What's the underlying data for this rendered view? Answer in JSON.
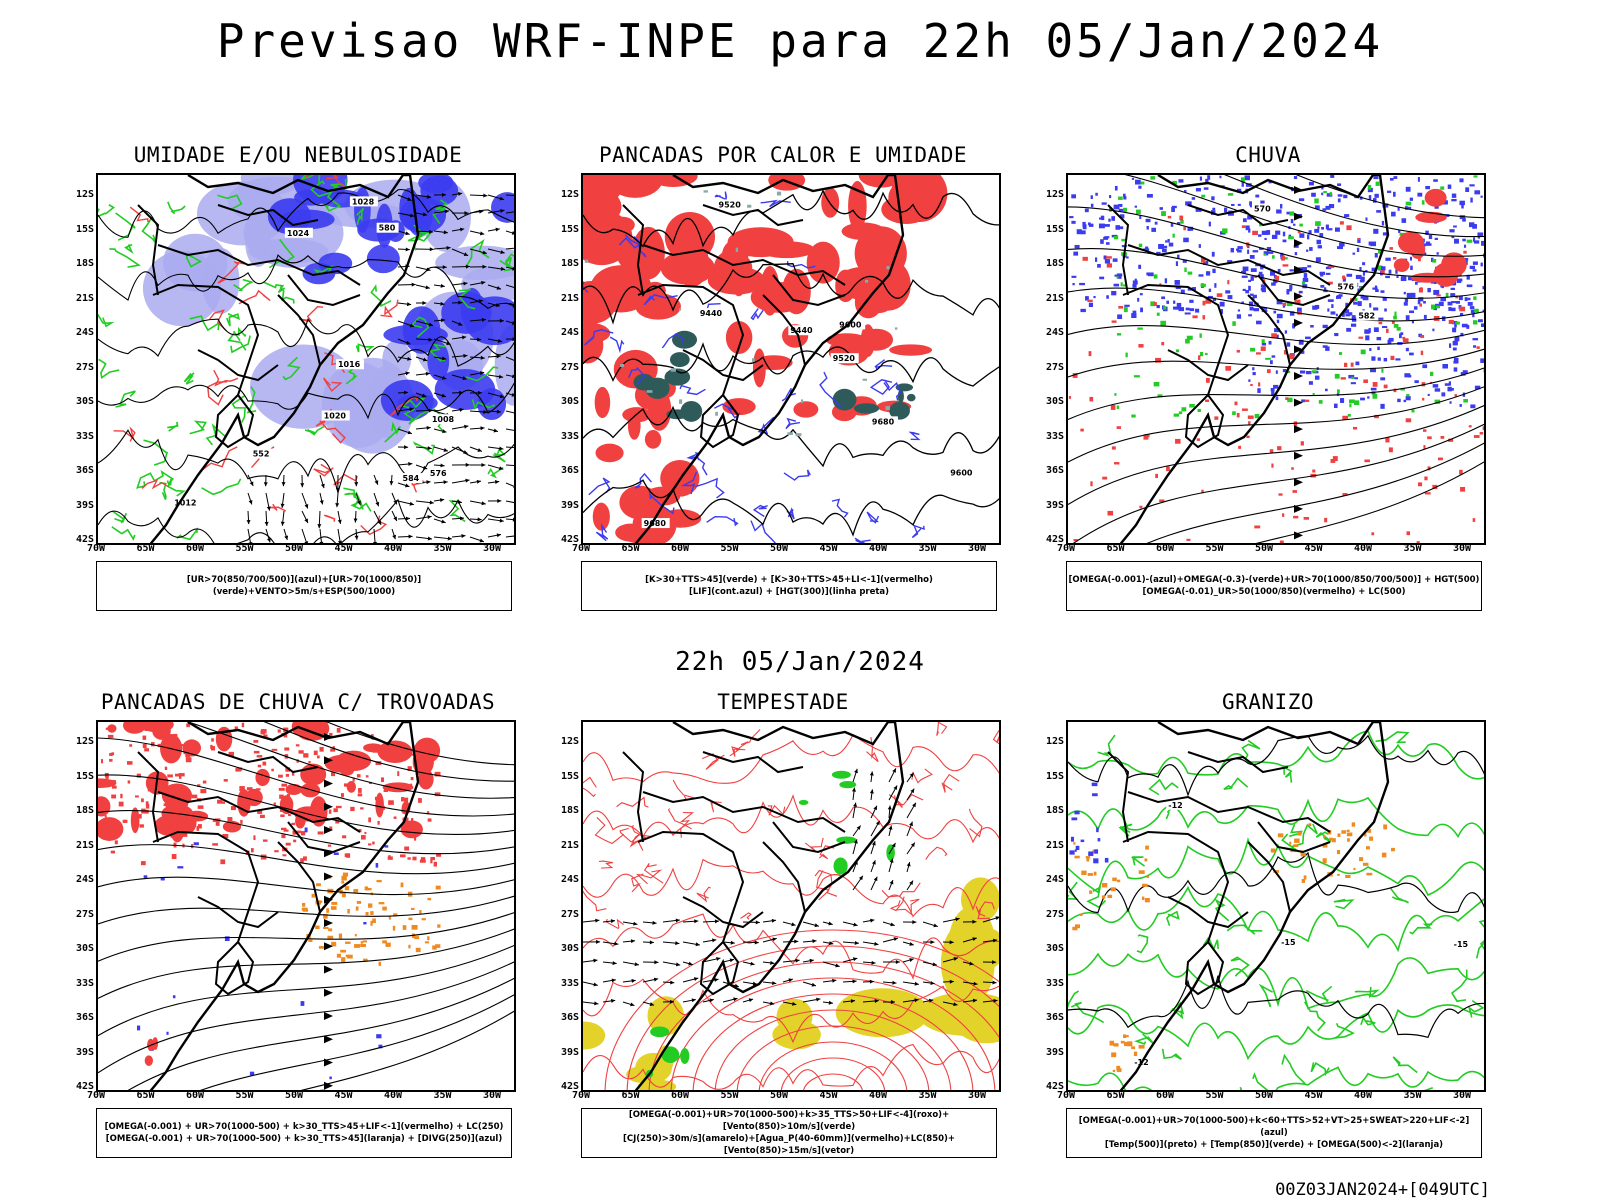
{
  "title": "Previsao WRF-INPE  para 22h 05/Jan/2024",
  "mid_title": "22h 05/Jan/2024",
  "footer": "00Z03JAN2024+[049UTC]",
  "axes": {
    "lat_labels": [
      "12S",
      "15S",
      "18S",
      "21S",
      "24S",
      "27S",
      "30S",
      "33S",
      "36S",
      "39S",
      "42S"
    ],
    "lon_labels": [
      "70W",
      "65W",
      "60W",
      "55W",
      "50W",
      "45W",
      "40W",
      "35W",
      "30W"
    ]
  },
  "chart_data": [
    {
      "type": "map",
      "id": "p1",
      "title": "UMIDADE E/OU NEBULOSIDADE",
      "legend_lines": [
        "[UR>70(850/700/500)](azul)+[UR>70(1000/850)](verde)+VENTO>5m/s+ESP(500/1000)"
      ],
      "contour_labels": [
        "1012",
        "1008",
        "1016",
        "1020",
        "1024",
        "1028",
        "576",
        "580",
        "584",
        "552"
      ]
    },
    {
      "type": "map",
      "id": "p2",
      "title": "PANCADAS POR CALOR E UMIDADE",
      "legend_lines": [
        "[K>30+TTS>45](verde) + [K>30+TTS>45+LI<-1](vermelho)",
        "[LIF](cont.azul) + [HGT(300)](linha preta)"
      ],
      "contour_labels": [
        "9680",
        "9600",
        "9520",
        "9440"
      ]
    },
    {
      "type": "map",
      "id": "p3",
      "title": "CHUVA",
      "legend_lines": [
        "[OMEGA(-0.001)-(azul)+OMEGA(-0.3)-(verde)+UR>70(1000/850/700/500)] + HGT(500)",
        "[OMEGA(-0.01)_UR>50(1000/850)(vermelho) + LC(500)"
      ],
      "contour_labels": [
        "582",
        "576",
        "570"
      ]
    },
    {
      "type": "map",
      "id": "p4",
      "title": "PANCADAS DE CHUVA C/ TROVOADAS",
      "legend_lines": [
        "[OMEGA(-0.001) + UR>70(1000-500) + k>30_TTS>45+LIF<-1](vermelho) + LC(250)",
        "[OMEGA(-0.001) + UR>70(1000-500) + k>30_TTS>45](laranja) + [DIVG(250)](azul)"
      ],
      "contour_labels": []
    },
    {
      "type": "map",
      "id": "p5",
      "title": "TEMPESTADE",
      "legend_lines": [
        "[OMEGA(-0.001)+UR>70(1000-500)+k>35_TTS>50+LIF<-4](roxo)+[Vento(850)>10m/s](verde)",
        "[CJ(250)>30m/s](amarelo)+[Agua_P(40-60mm)](vermelho)+LC(850)+[Vento(850)>15m/s](vetor)"
      ],
      "contour_labels": []
    },
    {
      "type": "map",
      "id": "p6",
      "title": "GRANIZO",
      "legend_lines": [
        "[OMEGA(-0.001)+UR>70(1000-500)+k<60+TTS>52+VT>25+SWEAT>220+LIF<-2](azul)",
        "[Temp(500)](preto) + [Temp(850)](verde) + [OMEGA(500)<-2](laranja)"
      ],
      "contour_labels": [
        "-12",
        "-15"
      ]
    }
  ],
  "colors": {
    "blue": "#3b3bf0",
    "lightblue": "#aaaaf0",
    "green": "#22cc22",
    "red": "#f04040",
    "darkteal": "#2e5a5a",
    "orange": "#f08a20",
    "yellow": "#e2d22a"
  }
}
